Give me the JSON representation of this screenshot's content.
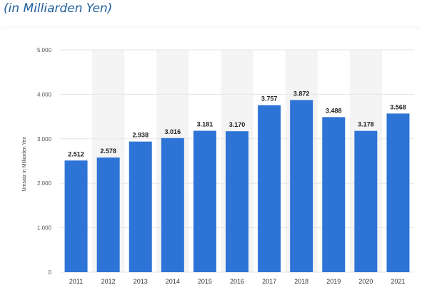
{
  "header": {
    "subtitle": "(in Milliarden Yen)"
  },
  "colors": {
    "bar": "#2d74d6",
    "band": "#f4f4f4",
    "grid": "#e6e6e6",
    "subtitle": "#1f5f9e"
  },
  "chart_data": {
    "type": "bar",
    "title": "",
    "subtitle": "(in Milliarden Yen)",
    "xlabel": "",
    "ylabel": "Umsatz in Milliarden Yen",
    "categories": [
      "2011",
      "2012",
      "2013",
      "2014",
      "2015",
      "2016",
      "2017",
      "2018",
      "2019",
      "2020",
      "2021"
    ],
    "values": [
      2512,
      2578,
      2938,
      3016,
      3181,
      3170,
      3757,
      3872,
      3488,
      3178,
      3568
    ],
    "value_labels": [
      "2.512",
      "2.578",
      "2.938",
      "3.016",
      "3.181",
      "3.170",
      "3.757",
      "3.872",
      "3.488",
      "3.178",
      "3.568"
    ],
    "ylim": [
      0,
      5000
    ],
    "yticks": [
      0,
      1000,
      2000,
      3000,
      4000,
      5000
    ],
    "ytick_labels": [
      "0",
      "1.000",
      "2.000",
      "3.000",
      "4.000",
      "5.000"
    ],
    "grid": true,
    "legend": "none"
  }
}
